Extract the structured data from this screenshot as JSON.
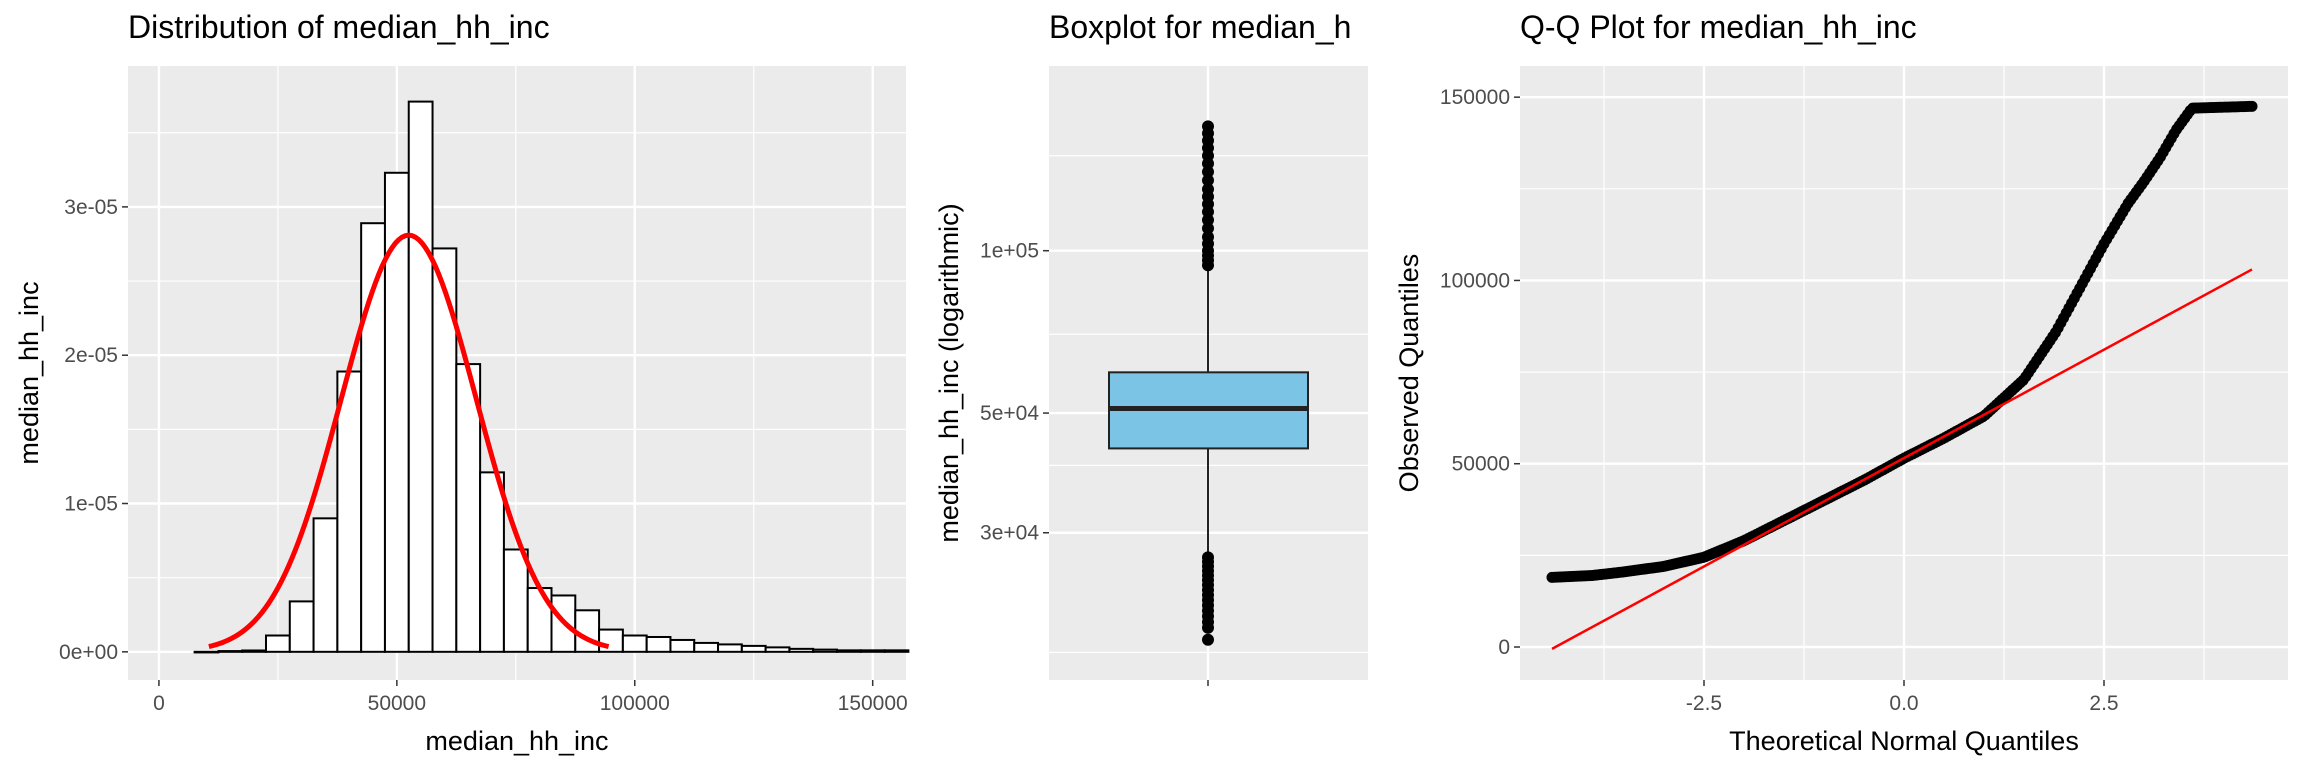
{
  "colors": {
    "panel_bg": "#EBEBEB",
    "grid": "#FFFFFF",
    "bar_fill": "#FFFFFF",
    "bar_stroke": "#000000",
    "density_line": "#FF0000",
    "box_fill": "#7BC4E6",
    "ref_line": "#FF0000",
    "points": "#000000"
  },
  "chart_data": [
    {
      "type": "bar",
      "subtype": "histogram",
      "title": "Distribution of median_hh_inc",
      "xlabel": "median_hh_inc",
      "ylabel": "median_hh_inc",
      "xlim": [
        0,
        150000
      ],
      "ylim": [
        0,
        0.00038
      ],
      "xticks": [
        0,
        50000,
        100000,
        150000
      ],
      "xtick_labels": [
        "0",
        "50000",
        "100000",
        "150000"
      ],
      "yticks": [
        0,
        1e-05,
        2e-05,
        3e-05
      ],
      "ytick_labels": [
        "0e+00",
        "1e-05",
        "2e-05",
        "3e-05"
      ],
      "bin_width": 5000,
      "bin_edges_start": 7500,
      "values": [
        0,
        5e-08,
        9e-08,
        1.1e-06,
        3.4e-06,
        9e-06,
        1.89e-05,
        2.89e-05,
        3.23e-05,
        3.71e-05,
        2.72e-05,
        1.94e-05,
        1.21e-05,
        6.9e-06,
        4.3e-06,
        3.8e-06,
        2.8e-06,
        1.5e-06,
        1.1e-06,
        1e-06,
        8e-07,
        6e-07,
        5e-07,
        4e-07,
        3e-07,
        2e-07,
        1.5e-07,
        1e-07,
        1e-07,
        1e-07
      ],
      "density_curve": {
        "mean": 52500,
        "sd": 14200,
        "x_range": [
          10500,
          94500
        ]
      },
      "grid": true
    },
    {
      "type": "box",
      "title": "Boxplot for median_h",
      "ylabel": "median_hh_inc (logarithmic)",
      "y_scale": "log",
      "ylim": [
        16000,
        220000
      ],
      "yticks": [
        30000,
        50000,
        100000
      ],
      "ytick_labels": [
        "3e+04",
        "5e+04",
        "1e+05"
      ],
      "box": {
        "q1": 43000,
        "median": 51000,
        "q3": 59500,
        "whisker_low": 27500,
        "whisker_high": 93000
      },
      "outliers_low": [
        27000,
        26500,
        26000,
        25500,
        25000,
        24500,
        24000,
        23500,
        23000,
        22500,
        22000,
        21500,
        21000,
        20500,
        20000,
        19000
      ],
      "outliers_high": [
        94000,
        96000,
        98000,
        100000,
        103000,
        106000,
        110000,
        114000,
        118000,
        122000,
        126000,
        130000,
        135000,
        140000,
        145000,
        150000,
        155000,
        160000,
        165000,
        170000
      ],
      "grid": true
    },
    {
      "type": "scatter",
      "subtype": "qq",
      "title": "Q-Q Plot for median_hh_inc",
      "xlabel": "Theoretical Normal Quantiles",
      "ylabel": "Observed Quantiles",
      "xlim": [
        -4.8,
        4.8
      ],
      "ylim": [
        -5000,
        150000
      ],
      "xticks": [
        -2.5,
        0.0,
        2.5
      ],
      "xtick_labels": [
        "-2.5",
        "0.0",
        "2.5"
      ],
      "yticks": [
        0,
        50000,
        100000,
        150000
      ],
      "ytick_labels": [
        "0",
        "50000",
        "100000",
        "150000"
      ],
      "quantile_curve": [
        [
          -4.4,
          19000
        ],
        [
          -3.9,
          19500
        ],
        [
          -3.5,
          20500
        ],
        [
          -3.0,
          22000
        ],
        [
          -2.5,
          24500
        ],
        [
          -2.0,
          29000
        ],
        [
          -1.5,
          34500
        ],
        [
          -1.0,
          40000
        ],
        [
          -0.5,
          45500
        ],
        [
          0.0,
          51500
        ],
        [
          0.5,
          57000
        ],
        [
          1.0,
          63000
        ],
        [
          1.5,
          73000
        ],
        [
          1.9,
          86000
        ],
        [
          2.2,
          98000
        ],
        [
          2.5,
          110000
        ],
        [
          2.8,
          121000
        ],
        [
          3.0,
          127000
        ],
        [
          3.2,
          133500
        ],
        [
          3.4,
          141000
        ],
        [
          3.6,
          147000
        ],
        [
          4.35,
          147500
        ]
      ],
      "ref_line": [
        [
          -4.4,
          -500
        ],
        [
          4.35,
          103000
        ]
      ],
      "grid": true
    }
  ]
}
